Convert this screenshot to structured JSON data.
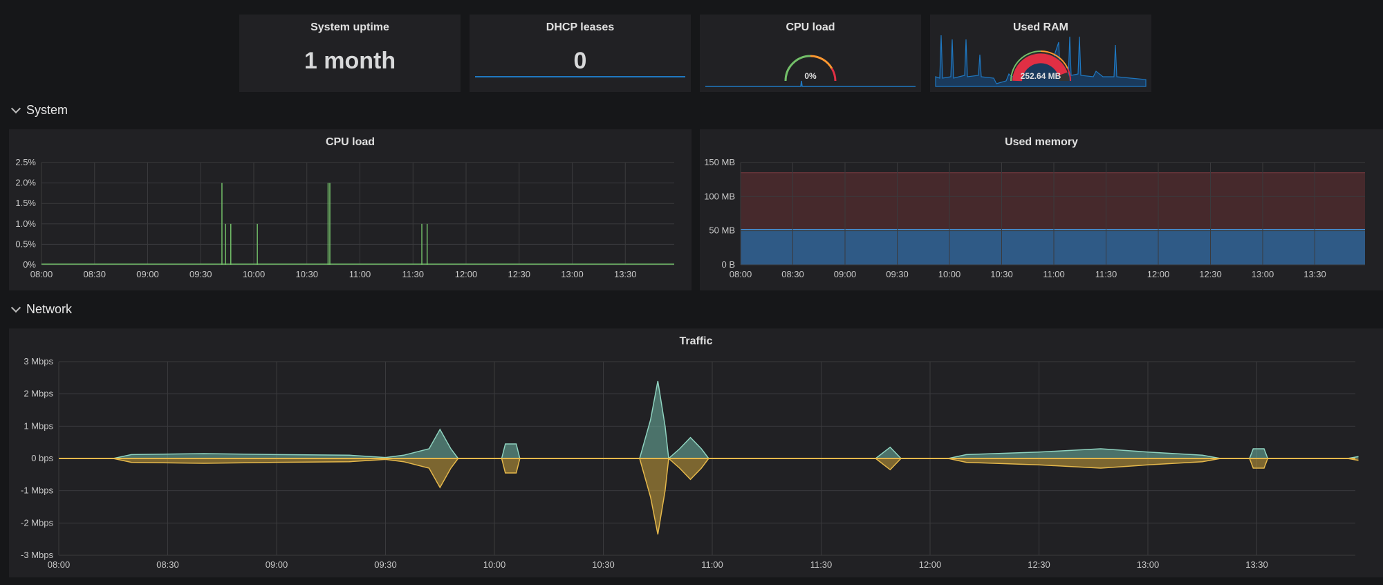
{
  "stats": {
    "uptime": {
      "title": "System uptime",
      "value": "1 month"
    },
    "dhcp": {
      "title": "DHCP leases",
      "value": "0"
    },
    "cpu": {
      "title": "CPU load",
      "value": "0%",
      "fraction": 0.0
    },
    "ram": {
      "title": "Used RAM",
      "value": "252.64 MB",
      "fraction": 0.85
    }
  },
  "rows": {
    "system": "System",
    "network": "Network"
  },
  "colors": {
    "green": "#73bf69",
    "blue": "#1f78c1",
    "teal": "#6fb7a4",
    "yellow": "#e5b84b",
    "red": "#e02f44",
    "orange": "#ff9830"
  },
  "chart_data": [
    {
      "type": "line",
      "title": "CPU load",
      "x": [
        "08:00",
        "08:30",
        "09:00",
        "09:30",
        "10:00",
        "10:30",
        "11:00",
        "11:30",
        "12:00",
        "12:30",
        "13:00",
        "13:30"
      ],
      "y_ticks": [
        "0%",
        "0.5%",
        "1.0%",
        "1.5%",
        "2.0%",
        "2.5%"
      ],
      "ylim": [
        0,
        2.5
      ],
      "spikes": [
        {
          "time": "09:42",
          "value": 2.0
        },
        {
          "time": "09:44",
          "value": 1.0
        },
        {
          "time": "09:47",
          "value": 1.0
        },
        {
          "time": "10:02",
          "value": 1.0
        },
        {
          "time": "10:42",
          "value": 2.0
        },
        {
          "time": "10:43",
          "value": 2.0
        },
        {
          "time": "11:35",
          "value": 1.0
        },
        {
          "time": "11:38",
          "value": 1.0
        }
      ],
      "series": [
        {
          "name": "",
          "baseline": 0
        }
      ]
    },
    {
      "type": "area",
      "title": "Used memory",
      "x": [
        "08:00",
        "08:30",
        "09:00",
        "09:30",
        "10:00",
        "10:30",
        "11:00",
        "11:30",
        "12:00",
        "12:30",
        "13:00",
        "13:30"
      ],
      "y_ticks": [
        "0 B",
        "50 MB",
        "100 MB",
        "150 MB"
      ],
      "ylim": [
        0,
        150
      ],
      "series": [
        {
          "name": "",
          "value": 52
        },
        {
          "name": "",
          "value": 135
        }
      ]
    },
    {
      "type": "area",
      "title": "Traffic",
      "x": [
        "08:00",
        "08:30",
        "09:00",
        "09:30",
        "10:00",
        "10:30",
        "11:00",
        "11:30",
        "12:00",
        "12:30",
        "13:00",
        "13:30"
      ],
      "y_ticks": [
        "-3 Mbps",
        "-2 Mbps",
        "-1 Mbps",
        "0 bps",
        "1 Mbps",
        "2 Mbps",
        "3 Mbps"
      ],
      "ylim": [
        -3,
        3
      ],
      "series": [
        {
          "name": "",
          "points": [
            [
              "08:00",
              0
            ],
            [
              "08:15",
              0
            ],
            [
              "08:20",
              0.12
            ],
            [
              "08:40",
              0.15
            ],
            [
              "09:00",
              0.12
            ],
            [
              "09:20",
              0.1
            ],
            [
              "09:30",
              0.03
            ],
            [
              "09:35",
              0.1
            ],
            [
              "09:42",
              0.3
            ],
            [
              "09:45",
              0.9
            ],
            [
              "09:48",
              0.3
            ],
            [
              "09:50",
              0
            ],
            [
              "10:02",
              0
            ],
            [
              "10:03",
              0.45
            ],
            [
              "10:06",
              0.45
            ],
            [
              "10:07",
              0
            ],
            [
              "10:40",
              0
            ],
            [
              "10:43",
              1.2
            ],
            [
              "10:45",
              2.4
            ],
            [
              "10:47",
              1.0
            ],
            [
              "10:48",
              0
            ],
            [
              "10:51",
              0.3
            ],
            [
              "10:54",
              0.65
            ],
            [
              "10:57",
              0.3
            ],
            [
              "10:59",
              0
            ],
            [
              "11:45",
              0
            ],
            [
              "11:49",
              0.35
            ],
            [
              "11:52",
              0
            ],
            [
              "12:05",
              0
            ],
            [
              "12:10",
              0.12
            ],
            [
              "12:30",
              0.2
            ],
            [
              "12:47",
              0.3
            ],
            [
              "13:00",
              0.2
            ],
            [
              "13:15",
              0.1
            ],
            [
              "13:20",
              0
            ],
            [
              "13:28",
              0
            ],
            [
              "13:29",
              0.3
            ],
            [
              "13:32",
              0.3
            ],
            [
              "13:33",
              0
            ],
            [
              "13:55",
              0
            ],
            [
              "13:58",
              0.06
            ]
          ]
        },
        {
          "name": "",
          "points": [
            [
              "08:00",
              0
            ],
            [
              "08:15",
              0
            ],
            [
              "08:20",
              -0.12
            ],
            [
              "08:40",
              -0.15
            ],
            [
              "09:00",
              -0.12
            ],
            [
              "09:20",
              -0.1
            ],
            [
              "09:30",
              -0.03
            ],
            [
              "09:35",
              -0.1
            ],
            [
              "09:42",
              -0.3
            ],
            [
              "09:45",
              -0.9
            ],
            [
              "09:48",
              -0.3
            ],
            [
              "09:50",
              0
            ],
            [
              "10:02",
              0
            ],
            [
              "10:03",
              -0.45
            ],
            [
              "10:06",
              -0.45
            ],
            [
              "10:07",
              0
            ],
            [
              "10:40",
              0
            ],
            [
              "10:43",
              -1.2
            ],
            [
              "10:45",
              -2.35
            ],
            [
              "10:47",
              -1.0
            ],
            [
              "10:48",
              0
            ],
            [
              "10:51",
              -0.3
            ],
            [
              "10:54",
              -0.65
            ],
            [
              "10:57",
              -0.3
            ],
            [
              "10:59",
              0
            ],
            [
              "11:45",
              0
            ],
            [
              "11:49",
              -0.35
            ],
            [
              "11:52",
              0
            ],
            [
              "12:05",
              0
            ],
            [
              "12:10",
              -0.12
            ],
            [
              "12:30",
              -0.2
            ],
            [
              "12:47",
              -0.3
            ],
            [
              "13:00",
              -0.2
            ],
            [
              "13:15",
              -0.1
            ],
            [
              "13:20",
              0
            ],
            [
              "13:28",
              0
            ],
            [
              "13:29",
              -0.3
            ],
            [
              "13:32",
              -0.3
            ],
            [
              "13:33",
              0
            ],
            [
              "13:55",
              0
            ],
            [
              "13:58",
              -0.06
            ]
          ]
        }
      ]
    }
  ]
}
